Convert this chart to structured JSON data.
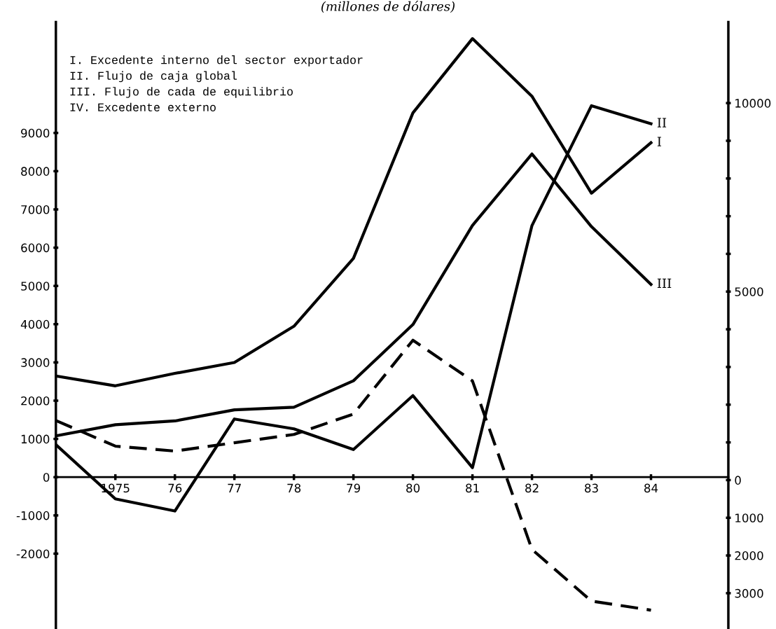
{
  "chart_data": {
    "type": "line",
    "title": "(millones de dólares)",
    "x": [
      1974,
      1975,
      1976,
      1977,
      1978,
      1979,
      1980,
      1981,
      1982,
      1983,
      1984
    ],
    "xlim": [
      1974,
      1985.3
    ],
    "xticks": [
      {
        "value": 1975,
        "label": "1975"
      },
      {
        "value": 1976,
        "label": "76"
      },
      {
        "value": 1977,
        "label": "77"
      },
      {
        "value": 1978,
        "label": "78"
      },
      {
        "value": 1979,
        "label": "79"
      },
      {
        "value": 1980,
        "label": "80"
      },
      {
        "value": 1981,
        "label": "81"
      },
      {
        "value": 1982,
        "label": "82"
      },
      {
        "value": 1983,
        "label": "83"
      },
      {
        "value": 1984,
        "label": "84"
      }
    ],
    "ylim": [
      -3970,
      11900
    ],
    "yticks": [
      -2000,
      -1000,
      0,
      1000,
      2000,
      3000,
      4000,
      5000,
      6000,
      7000,
      8000,
      9000
    ],
    "y2lim": [
      -3950,
      12150
    ],
    "y2ticks": [
      {
        "value": -3000,
        "label": "3000"
      },
      {
        "value": -2000,
        "label": "2000"
      },
      {
        "value": -1000,
        "label": "1000"
      },
      0,
      {
        "value": 1000,
        "label": null
      },
      {
        "value": 2000,
        "label": null
      },
      {
        "value": 3000,
        "label": null
      },
      {
        "value": 4000,
        "label": null
      },
      5000,
      {
        "value": 6000,
        "label": null
      },
      {
        "value": 7000,
        "label": null
      },
      {
        "value": 8000,
        "label": null
      },
      {
        "value": 9000,
        "label": null
      },
      10000
    ],
    "series": [
      {
        "name": "I",
        "color": "#000000",
        "axis": "y2",
        "line_style": "solid",
        "values": [
          2760,
          2500,
          2830,
          3120,
          4080,
          5880,
          9740,
          11710,
          10180,
          7610,
          8950
        ]
      },
      {
        "name": "II",
        "color": "#000000",
        "axis": "y2",
        "line_style": "solid",
        "values": [
          940,
          -500,
          -820,
          1620,
          1360,
          810,
          2240,
          330,
          6750,
          9930,
          9450
        ]
      },
      {
        "name": "III",
        "color": "#000000",
        "axis": "y",
        "line_style": "solid",
        "values": [
          1080,
          1370,
          1470,
          1760,
          1830,
          2520,
          3990,
          6580,
          8450,
          6550,
          5040
        ]
      },
      {
        "color": "#000000",
        "axis": "y2",
        "line_style": "dashed",
        "values": [
          1580,
          900,
          770,
          990,
          1210,
          1750,
          3710,
          2630,
          -1840,
          -3210,
          -3450
        ]
      }
    ],
    "annotations": [
      "I. Excedente interno del sector exportador",
      "II. Flujo de caja global",
      "III. Flujo de cada de equilibrio",
      "IV. Excedente externo"
    ],
    "grid": false,
    "legend": false,
    "marker": "none"
  }
}
